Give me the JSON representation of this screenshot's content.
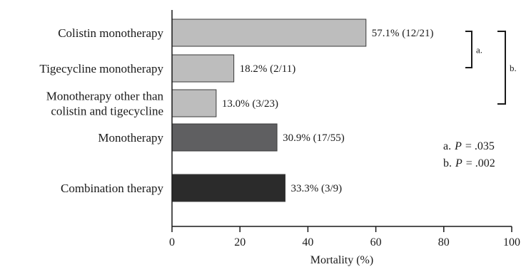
{
  "chart_data": {
    "type": "bar",
    "orientation": "horizontal",
    "categories": [
      [
        "Colistin monotherapy"
      ],
      [
        "Tigecycline monotherapy"
      ],
      [
        "Monotherapy  other than",
        "colistin and tigecycline"
      ],
      [
        "Monotherapy"
      ],
      [
        "Combination therapy"
      ]
    ],
    "values": [
      57.1,
      18.2,
      13.0,
      30.9,
      33.3
    ],
    "data_labels": [
      "57.1% (12/21)",
      "18.2% (2/11)",
      "13.0% (3/23)",
      "30.9% (17/55)",
      "33.3% (3/9)"
    ],
    "bar_colors": [
      "#bdbdbd",
      "#bdbdbd",
      "#bdbdbd",
      "#5f5f61",
      "#2b2b2b"
    ],
    "xlabel": "Mortality (%)",
    "xlim": [
      0,
      100
    ],
    "xticks": [
      0,
      20,
      40,
      60,
      80,
      100
    ],
    "grid": false,
    "comparisons": [
      {
        "label": "a.",
        "from": 0,
        "to": 1
      },
      {
        "label": "b.",
        "from": 0,
        "to": 2
      }
    ],
    "significance": [
      {
        "label": "a.",
        "italic": "P",
        "value": "= .035"
      },
      {
        "label": "b.",
        "italic": "P",
        "value": "= .002"
      }
    ]
  }
}
